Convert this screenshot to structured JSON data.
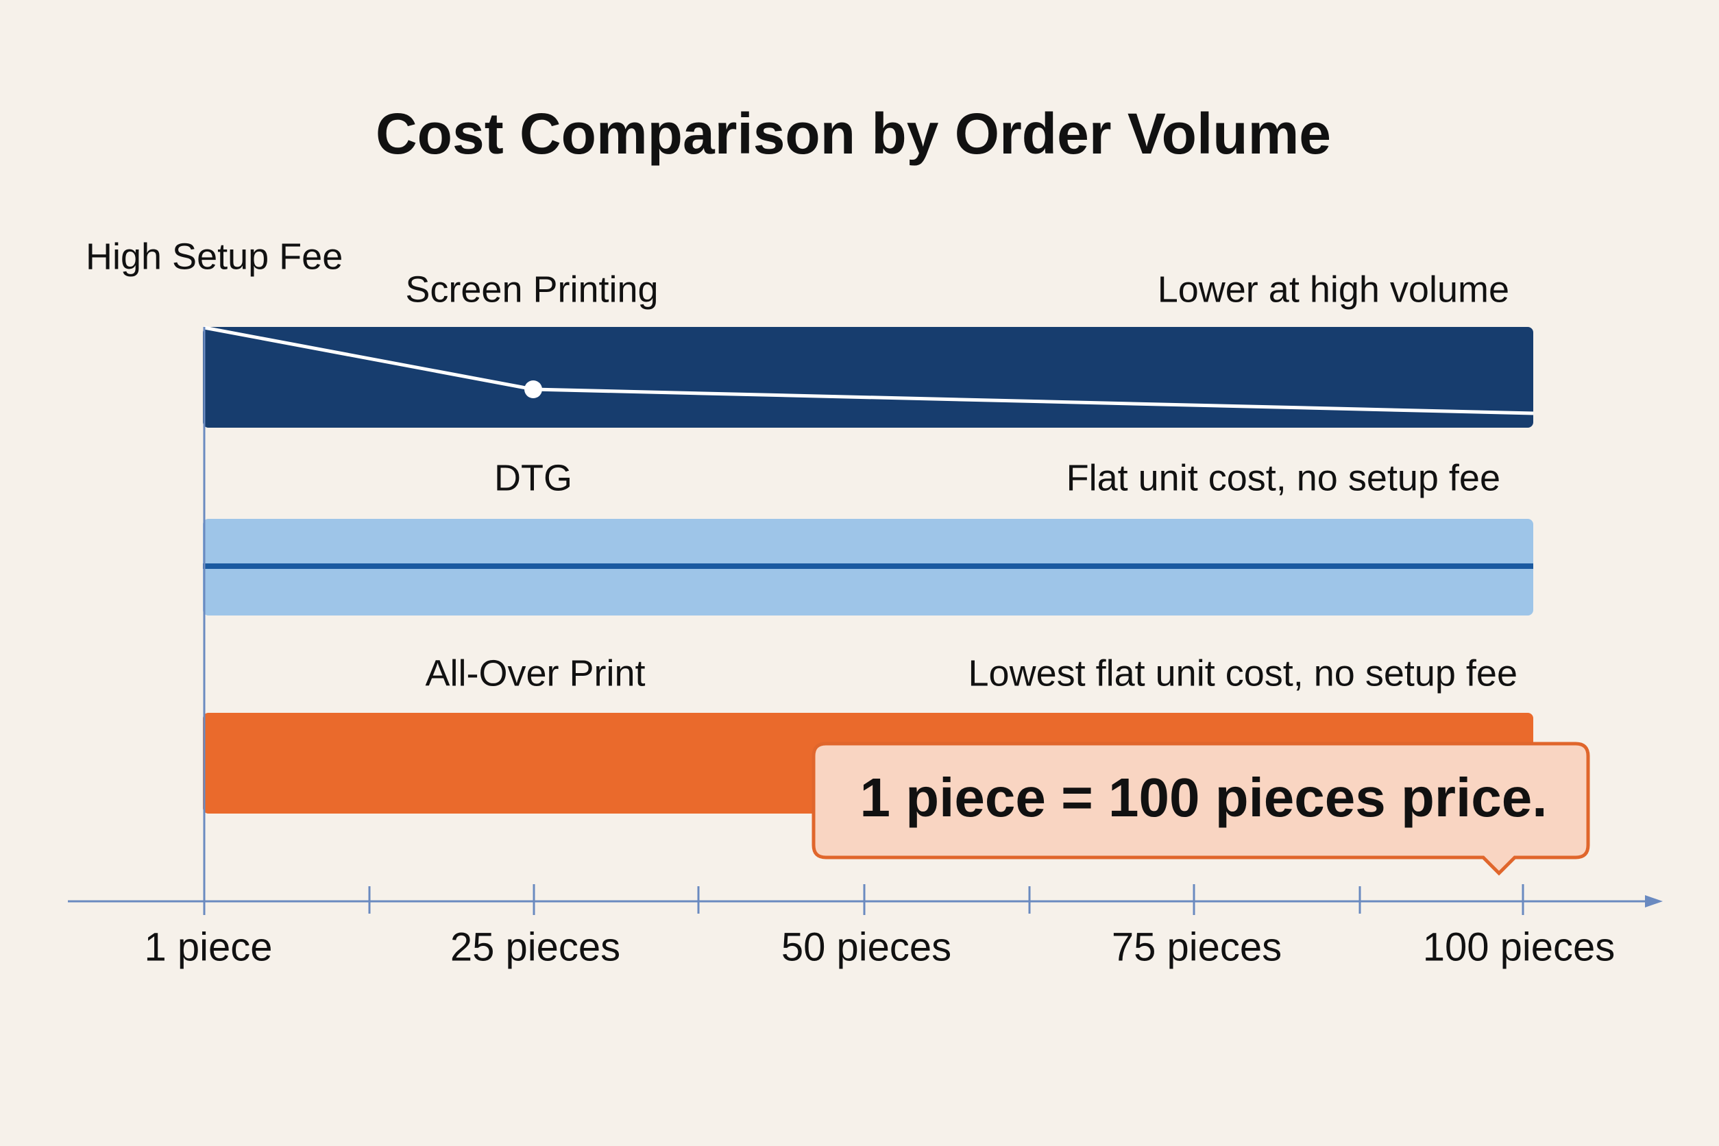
{
  "title": "Cost Comparison by Order Volume",
  "corner_note": "High Setup Fee",
  "rows": [
    {
      "label": "Screen Printing",
      "note": "Lower at high volume"
    },
    {
      "label": "DTG",
      "note": "Flat unit cost, no setup fee"
    },
    {
      "label": "All-Over Print",
      "note": "Lowest flat unit cost, no setup fee"
    }
  ],
  "axis_labels": [
    "1 piece",
    "25 pieces",
    "50 pieces",
    "75 pieces",
    "100 pieces"
  ],
  "callout": "1 piece = 100 pieces price."
}
